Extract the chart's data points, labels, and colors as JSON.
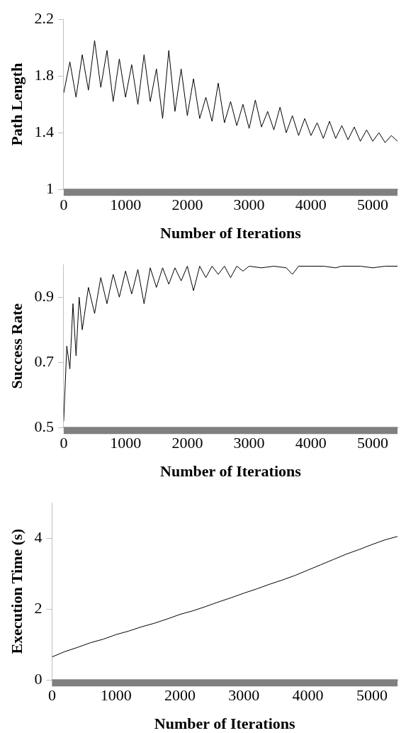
{
  "chart_data": [
    {
      "type": "line",
      "xlabel": "Number of Iterations",
      "ylabel": "Path Length",
      "xlim": [
        0,
        5400
      ],
      "xticks": [
        0,
        1000,
        2000,
        3000,
        4000,
        5000
      ],
      "ylim": [
        1,
        2.2
      ],
      "yticks": [
        1,
        1.4,
        1.8,
        2.2
      ],
      "color": "#000000",
      "x": [
        0,
        100,
        200,
        300,
        400,
        500,
        600,
        700,
        800,
        900,
        1000,
        1100,
        1200,
        1300,
        1400,
        1500,
        1600,
        1700,
        1800,
        1900,
        2000,
        2100,
        2200,
        2300,
        2400,
        2500,
        2600,
        2700,
        2800,
        2900,
        3000,
        3100,
        3200,
        3300,
        3400,
        3500,
        3600,
        3700,
        3800,
        3900,
        4000,
        4100,
        4200,
        4300,
        4400,
        4500,
        4600,
        4700,
        4800,
        4900,
        5000,
        5100,
        5200,
        5300,
        5400
      ],
      "values": [
        1.68,
        1.9,
        1.65,
        1.95,
        1.7,
        2.05,
        1.72,
        1.98,
        1.62,
        1.92,
        1.65,
        1.88,
        1.6,
        1.95,
        1.62,
        1.85,
        1.5,
        1.98,
        1.55,
        1.85,
        1.52,
        1.78,
        1.5,
        1.65,
        1.48,
        1.75,
        1.47,
        1.62,
        1.45,
        1.6,
        1.43,
        1.63,
        1.44,
        1.55,
        1.42,
        1.58,
        1.4,
        1.52,
        1.38,
        1.5,
        1.38,
        1.47,
        1.36,
        1.48,
        1.36,
        1.45,
        1.35,
        1.44,
        1.34,
        1.42,
        1.34,
        1.4,
        1.33,
        1.38,
        1.34
      ]
    },
    {
      "type": "line",
      "xlabel": "Number of Iterations",
      "ylabel": "Success Rate",
      "xlim": [
        0,
        5400
      ],
      "xticks": [
        0,
        1000,
        2000,
        3000,
        4000,
        5000
      ],
      "ylim": [
        0.5,
        1
      ],
      "yticks": [
        {
          "value": 0.5,
          "label": "0.5"
        },
        {
          "value": 0.7,
          "label": "0.7"
        },
        {
          "value": 0.9,
          "label": "0.9"
        }
      ],
      "color": "#000000",
      "x": [
        0,
        50,
        100,
        150,
        200,
        250,
        300,
        400,
        500,
        600,
        700,
        800,
        900,
        1000,
        1100,
        1200,
        1300,
        1400,
        1500,
        1600,
        1700,
        1800,
        1900,
        2000,
        2100,
        2200,
        2300,
        2400,
        2500,
        2600,
        2700,
        2800,
        2900,
        3000,
        3200,
        3400,
        3600,
        3700,
        3800,
        4000,
        4200,
        4400,
        4500,
        4800,
        5000,
        5200,
        5400
      ],
      "values": [
        0.52,
        0.75,
        0.68,
        0.88,
        0.72,
        0.9,
        0.8,
        0.93,
        0.85,
        0.96,
        0.88,
        0.97,
        0.9,
        0.98,
        0.91,
        0.985,
        0.88,
        0.99,
        0.93,
        0.99,
        0.94,
        0.99,
        0.95,
        0.995,
        0.92,
        0.995,
        0.96,
        0.995,
        0.97,
        0.995,
        0.96,
        0.995,
        0.98,
        0.995,
        0.99,
        0.995,
        0.99,
        0.97,
        0.995,
        0.995,
        0.995,
        0.99,
        0.995,
        0.995,
        0.99,
        0.995,
        0.995
      ]
    },
    {
      "type": "line",
      "xlabel": "Number of Iterations",
      "ylabel": "Execution Time (s)",
      "xlim": [
        0,
        5400
      ],
      "xticks": [
        0,
        1000,
        2000,
        3000,
        4000,
        5000
      ],
      "ylim": [
        0,
        5
      ],
      "yticks": [
        0,
        2,
        4
      ],
      "color": "#000000",
      "x": [
        0,
        200,
        400,
        600,
        800,
        1000,
        1200,
        1400,
        1600,
        1800,
        2000,
        2200,
        2400,
        2600,
        2800,
        3000,
        3200,
        3400,
        3600,
        3800,
        4000,
        4200,
        4400,
        4600,
        4800,
        5000,
        5200,
        5400
      ],
      "values": [
        0.65,
        0.8,
        0.92,
        1.05,
        1.15,
        1.28,
        1.38,
        1.5,
        1.6,
        1.72,
        1.85,
        1.95,
        2.07,
        2.2,
        2.32,
        2.45,
        2.57,
        2.7,
        2.82,
        2.95,
        3.1,
        3.25,
        3.4,
        3.55,
        3.68,
        3.82,
        3.95,
        4.05
      ]
    }
  ]
}
